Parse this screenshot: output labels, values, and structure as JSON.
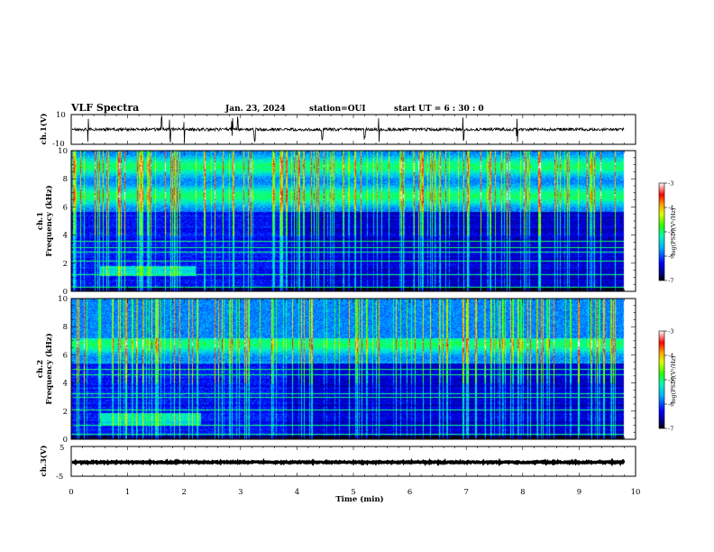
{
  "header": {
    "title": "VLF Spectra",
    "date": "Jan. 23, 2024",
    "station": "station=OUI",
    "start": "start UT =  6 : 30 : 0"
  },
  "chart_data": [
    {
      "type": "line",
      "panel": "ch1-waveform",
      "ylabel": "ch.1(V)",
      "ylim": [
        -10,
        10
      ],
      "yticks": [
        "10",
        "-10"
      ],
      "xlim": [
        0,
        10
      ],
      "trace_color": "#000000",
      "series": [
        {
          "baseline": 0,
          "noise_amplitude": 1,
          "spikes_min": [
            0.3,
            1.6,
            1.75,
            2.0,
            2.85,
            2.95,
            3.25,
            4.45,
            5.2,
            5.45,
            6.95,
            7.9
          ]
        }
      ]
    },
    {
      "type": "heatmap",
      "panel": "ch1-spectrogram",
      "ylabel": "ch.1\nFrequency (kHz)",
      "ylim": [
        0,
        10
      ],
      "yticks": [
        "0",
        "2",
        "4",
        "6",
        "8",
        "10"
      ],
      "xlim": [
        0,
        10
      ],
      "xdata_max": 9.8,
      "colorbar": {
        "label": "log(PSD)(V²/Hz)",
        "range": [
          -7,
          -3
        ],
        "ticks": [
          "-3",
          "-4",
          "-5",
          "-6",
          "-7"
        ]
      },
      "features": {
        "bright_band_khz": [
          5.7,
          10
        ],
        "tone_khz": [
          0.3,
          1.2,
          2.2,
          2.85,
          3.15,
          3.6
        ],
        "hiss_band": {
          "t_min": [
            0.5,
            2.2
          ],
          "f_khz": [
            1.1,
            1.8
          ]
        }
      }
    },
    {
      "type": "heatmap",
      "panel": "ch2-spectrogram",
      "ylabel": "ch.2\nFrequency (kHz)",
      "ylim": [
        0,
        10
      ],
      "yticks": [
        "0",
        "2",
        "4",
        "6",
        "8",
        "10"
      ],
      "xlim": [
        0,
        10
      ],
      "xdata_max": 9.8,
      "colorbar": {
        "label": "log(PSD)(V²/Hz)",
        "range": [
          -7,
          -3
        ],
        "ticks": [
          "-3",
          "-4",
          "-5",
          "-6",
          "-7"
        ]
      },
      "features": {
        "bright_band_khz": [
          5.4,
          7.2
        ],
        "tone_khz": [
          0.4,
          1.0,
          2.1,
          3.0,
          3.3,
          4.6,
          5.0
        ],
        "hiss_band": {
          "t_min": [
            0.5,
            2.3
          ],
          "f_khz": [
            1.0,
            1.9
          ]
        }
      }
    },
    {
      "type": "line",
      "panel": "ch3-waveform",
      "ylabel": "ch.3(V)",
      "ylim": [
        -5,
        5
      ],
      "yticks": [
        "5",
        "-5"
      ],
      "xlim": [
        0,
        10
      ],
      "xlabel": "Time (min)",
      "xticks": [
        "0",
        "1",
        "2",
        "3",
        "4",
        "5",
        "6",
        "7",
        "8",
        "9",
        "10"
      ],
      "trace_color": "#000000",
      "series": [
        {
          "baseline": -0.3,
          "noise_amplitude": 0.2
        }
      ]
    }
  ]
}
